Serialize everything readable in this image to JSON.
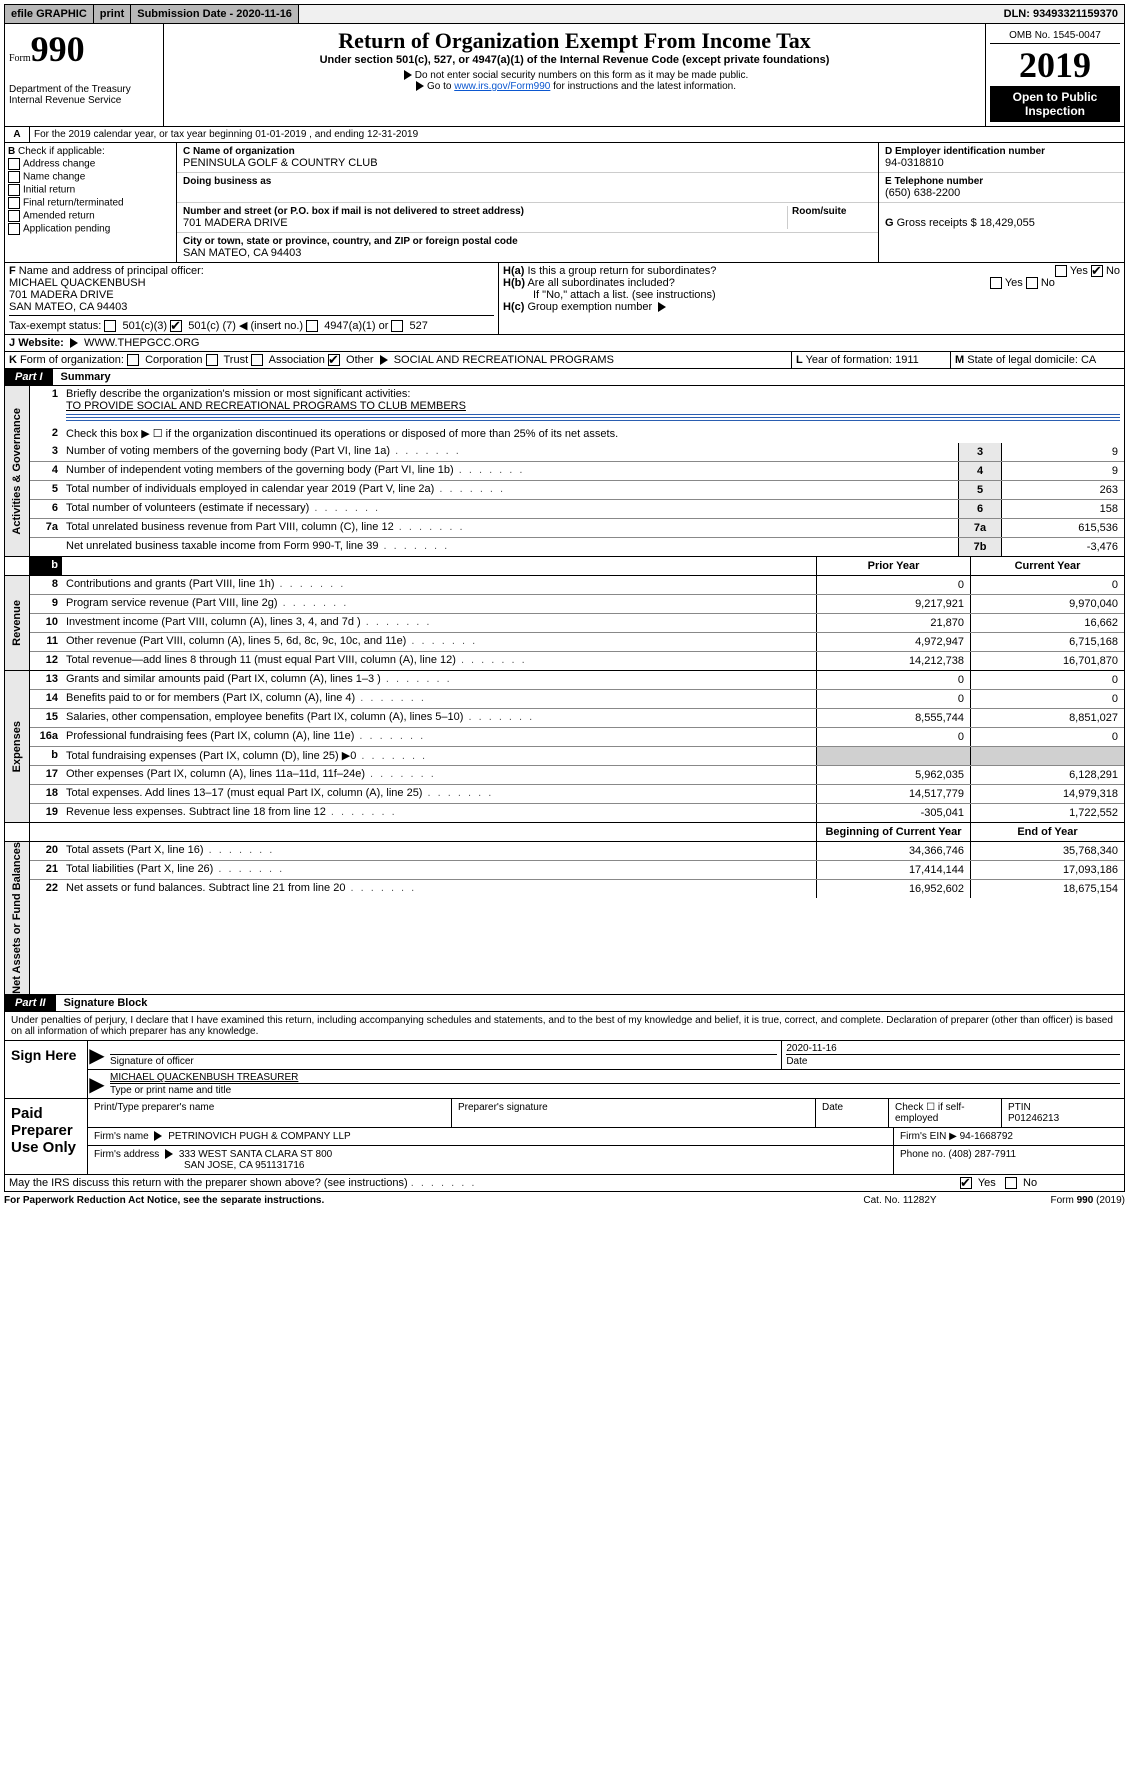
{
  "topbar": {
    "efile": "efile GRAPHIC",
    "print": "print",
    "submission_label": "Submission Date - 2020-11-16",
    "dln": "DLN: 93493321159370"
  },
  "header": {
    "form_label": "Form",
    "form_num": "990",
    "dept": "Department of the Treasury",
    "irs": "Internal Revenue Service",
    "title": "Return of Organization Exempt From Income Tax",
    "subtitle": "Under section 501(c), 527, or 4947(a)(1) of the Internal Revenue Code (except private foundations)",
    "note1": "Do not enter social security numbers on this form as it may be made public.",
    "note2_pre": "Go to ",
    "note2_link": "www.irs.gov/Form990",
    "note2_post": " for instructions and the latest information.",
    "omb": "OMB No. 1545-0047",
    "year": "2019",
    "inspection": "Open to Public Inspection"
  },
  "row_a": "For the 2019 calendar year, or tax year beginning 01-01-2019   , and ending 12-31-2019",
  "box_b": {
    "heading": "Check if applicable:",
    "items": [
      "Address change",
      "Name change",
      "Initial return",
      "Final return/terminated",
      "Amended return",
      "Application pending"
    ]
  },
  "box_c": {
    "name_label": "Name of organization",
    "name": "PENINSULA GOLF & COUNTRY CLUB",
    "dba_label": "Doing business as",
    "street_label": "Number and street (or P.O. box if mail is not delivered to street address)",
    "room_label": "Room/suite",
    "street": "701 MADERA DRIVE",
    "city_label": "City or town, state or province, country, and ZIP or foreign postal code",
    "city": "SAN MATEO, CA  94403"
  },
  "box_d": {
    "label": "Employer identification number",
    "value": "94-0318810"
  },
  "box_e": {
    "label": "Telephone number",
    "value": "(650) 638-2200"
  },
  "box_g": {
    "label": "Gross receipts $",
    "value": "18,429,055"
  },
  "box_f": {
    "label": "Name and address of principal officer:",
    "name": "MICHAEL QUACKENBUSH",
    "addr1": "701 MADERA DRIVE",
    "addr2": "SAN MATEO, CA  94403"
  },
  "box_h": {
    "a_label": "Is this a group return for subordinates?",
    "b_label": "Are all subordinates included?",
    "c_label": "Group exemption number",
    "note": "If \"No,\" attach a list. (see instructions)",
    "yes": "Yes",
    "no": "No"
  },
  "tax_exempt": {
    "label": "Tax-exempt status:",
    "c3": "501(c)(3)",
    "c_pre": "501(c) (",
    "c_mid": "7",
    "c_post": ")",
    "insert": "(insert no.)",
    "a1": "4947(a)(1) or",
    "s527": "527"
  },
  "website": {
    "label": "Website:",
    "value": "WWW.THEPGCC.ORG"
  },
  "box_k": {
    "label": "Form of organization:",
    "corp": "Corporation",
    "trust": "Trust",
    "assoc": "Association",
    "other": "Other",
    "other_val": "SOCIAL AND RECREATIONAL PROGRAMS"
  },
  "box_l": {
    "label": "Year of formation:",
    "value": "1911"
  },
  "box_m": {
    "label": "State of legal domicile:",
    "value": "CA"
  },
  "part1": {
    "label": "Part I",
    "title": "Summary"
  },
  "summary": {
    "l1_label": "Briefly describe the organization's mission or most significant activities:",
    "l1_val": "TO PROVIDE SOCIAL AND RECREATIONAL PROGRAMS TO CLUB MEMBERS",
    "l2": "Check this box ▶ ☐ if the organization discontinued its operations or disposed of more than 25% of its net assets.",
    "gov_tab": "Activities & Governance",
    "rev_tab": "Revenue",
    "exp_tab": "Expenses",
    "net_tab": "Net Assets or Fund Balances",
    "prior": "Prior Year",
    "current": "Current Year",
    "begin": "Beginning of Current Year",
    "end": "End of Year",
    "lines_single": [
      {
        "n": "3",
        "t": "Number of voting members of the governing body (Part VI, line 1a)",
        "c": "3",
        "v": "9"
      },
      {
        "n": "4",
        "t": "Number of independent voting members of the governing body (Part VI, line 1b)",
        "c": "4",
        "v": "9"
      },
      {
        "n": "5",
        "t": "Total number of individuals employed in calendar year 2019 (Part V, line 2a)",
        "c": "5",
        "v": "263"
      },
      {
        "n": "6",
        "t": "Total number of volunteers (estimate if necessary)",
        "c": "6",
        "v": "158"
      },
      {
        "n": "7a",
        "t": "Total unrelated business revenue from Part VIII, column (C), line 12",
        "c": "7a",
        "v": "615,536"
      },
      {
        "n": "",
        "t": "Net unrelated business taxable income from Form 990-T, line 39",
        "c": "7b",
        "v": "-3,476"
      }
    ],
    "lines_rev": [
      {
        "n": "8",
        "t": "Contributions and grants (Part VIII, line 1h)",
        "p": "0",
        "c": "0"
      },
      {
        "n": "9",
        "t": "Program service revenue (Part VIII, line 2g)",
        "p": "9,217,921",
        "c": "9,970,040"
      },
      {
        "n": "10",
        "t": "Investment income (Part VIII, column (A), lines 3, 4, and 7d )",
        "p": "21,870",
        "c": "16,662"
      },
      {
        "n": "11",
        "t": "Other revenue (Part VIII, column (A), lines 5, 6d, 8c, 9c, 10c, and 11e)",
        "p": "4,972,947",
        "c": "6,715,168"
      },
      {
        "n": "12",
        "t": "Total revenue—add lines 8 through 11 (must equal Part VIII, column (A), line 12)",
        "p": "14,212,738",
        "c": "16,701,870"
      }
    ],
    "lines_exp": [
      {
        "n": "13",
        "t": "Grants and similar amounts paid (Part IX, column (A), lines 1–3 )",
        "p": "0",
        "c": "0"
      },
      {
        "n": "14",
        "t": "Benefits paid to or for members (Part IX, column (A), line 4)",
        "p": "0",
        "c": "0"
      },
      {
        "n": "15",
        "t": "Salaries, other compensation, employee benefits (Part IX, column (A), lines 5–10)",
        "p": "8,555,744",
        "c": "8,851,027"
      },
      {
        "n": "16a",
        "t": "Professional fundraising fees (Part IX, column (A), line 11e)",
        "p": "0",
        "c": "0"
      },
      {
        "n": "b",
        "t": "Total fundraising expenses (Part IX, column (D), line 25) ▶0",
        "p": "",
        "c": "",
        "shade": true
      },
      {
        "n": "17",
        "t": "Other expenses (Part IX, column (A), lines 11a–11d, 11f–24e)",
        "p": "5,962,035",
        "c": "6,128,291"
      },
      {
        "n": "18",
        "t": "Total expenses. Add lines 13–17 (must equal Part IX, column (A), line 25)",
        "p": "14,517,779",
        "c": "14,979,318"
      },
      {
        "n": "19",
        "t": "Revenue less expenses. Subtract line 18 from line 12",
        "p": "-305,041",
        "c": "1,722,552"
      }
    ],
    "lines_net": [
      {
        "n": "20",
        "t": "Total assets (Part X, line 16)",
        "p": "34,366,746",
        "c": "35,768,340"
      },
      {
        "n": "21",
        "t": "Total liabilities (Part X, line 26)",
        "p": "17,414,144",
        "c": "17,093,186"
      },
      {
        "n": "22",
        "t": "Net assets or fund balances. Subtract line 21 from line 20",
        "p": "16,952,602",
        "c": "18,675,154"
      }
    ]
  },
  "part2": {
    "label": "Part II",
    "title": "Signature Block"
  },
  "perjury": "Under penalties of perjury, I declare that I have examined this return, including accompanying schedules and statements, and to the best of my knowledge and belief, it is true, correct, and complete. Declaration of preparer (other than officer) is based on all information of which preparer has any knowledge.",
  "sign": {
    "here": "Sign Here",
    "sig_label": "Signature of officer",
    "date": "2020-11-16",
    "date_label": "Date",
    "name": "MICHAEL QUACKENBUSH  TREASURER",
    "name_label": "Type or print name and title"
  },
  "paid": {
    "here": "Paid Preparer Use Only",
    "h1": "Print/Type preparer's name",
    "h2": "Preparer's signature",
    "h3": "Date",
    "h4": "Check ☐ if self-employed",
    "h5": "PTIN",
    "ptin": "P01246213",
    "firm_label": "Firm's name",
    "firm": "PETRINOVICH PUGH & COMPANY LLP",
    "ein_label": "Firm's EIN ▶",
    "ein": "94-1668792",
    "addr_label": "Firm's address",
    "addr1": "333 WEST SANTA CLARA ST 800",
    "addr2": "SAN JOSE, CA  951131716",
    "phone_label": "Phone no.",
    "phone": "(408) 287-7911"
  },
  "discuss": "May the IRS discuss this return with the preparer shown above? (see instructions)",
  "footer": {
    "pra": "For Paperwork Reduction Act Notice, see the separate instructions.",
    "cat": "Cat. No. 11282Y",
    "form": "Form 990 (2019)"
  }
}
